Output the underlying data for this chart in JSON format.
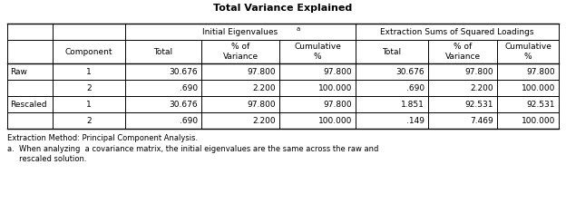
{
  "title": "Total Variance Explained",
  "group1_label": "Initial Eigenvalues",
  "group1_sup": "a",
  "group2_label": "Extraction Sums of Squared Loadings",
  "sub_headers": [
    "Component",
    "Total",
    "% of\nVariance",
    "Cumulative\n%",
    "Total",
    "% of\nVariance",
    "Cumulative\n%"
  ],
  "row_data": [
    [
      "Raw",
      "1",
      "30.676",
      "97.800",
      "97.800",
      "30.676",
      "97.800",
      "97.800"
    ],
    [
      "",
      "2",
      ".690",
      "2.200",
      "100.000",
      ".690",
      "2.200",
      "100.000"
    ],
    [
      "Rescaled",
      "1",
      "30.676",
      "97.800",
      "97.800",
      "1.851",
      "92.531",
      "92.531"
    ],
    [
      "",
      "2",
      ".690",
      "2.200",
      "100.000",
      ".149",
      "7.469",
      "100.000"
    ]
  ],
  "footnote1": "Extraction Method: Principal Component Analysis.",
  "footnote2a": "a.  When analyzing  a covariance matrix, the initial eigenvalues are the same across the raw and",
  "footnote2b": "     rescaled solution.",
  "bg_color": "#ffffff",
  "border_color": "#000000",
  "font_size": 6.5,
  "title_font_size": 8.0
}
